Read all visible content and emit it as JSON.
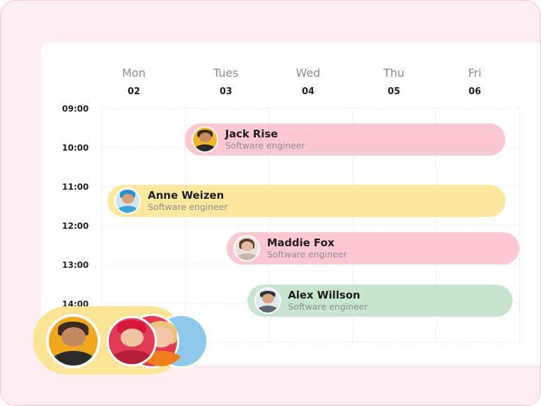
{
  "days": [
    {
      "name": "Mon",
      "num": "02"
    },
    {
      "name": "Tues",
      "num": "03"
    },
    {
      "name": "Wed",
      "num": "04"
    },
    {
      "name": "Thu",
      "num": "05"
    },
    {
      "name": "Fri",
      "num": "06"
    }
  ],
  "times": [
    "09:00",
    "10:00",
    "11:00",
    "12:00",
    "13:00",
    "14:00"
  ],
  "events": [
    {
      "name": "Jack Rise",
      "role": "Software engineer",
      "color": "#fec8d2",
      "avatar": "man-glasses-avatar"
    },
    {
      "name": "Anne Weizen",
      "role": "Software engineer",
      "color": "#fde8a0",
      "avatar": "woman-blue-hat-avatar"
    },
    {
      "name": "Maddie Fox",
      "role": "Software engineer",
      "color": "#fec8d2",
      "avatar": "woman-avatar"
    },
    {
      "name": "Alex Willson",
      "role": "Software engineer",
      "color": "#c8e5cf",
      "avatar": "man-cap-avatar"
    }
  ],
  "team_group": {
    "color": "#fde598",
    "members": 3
  }
}
